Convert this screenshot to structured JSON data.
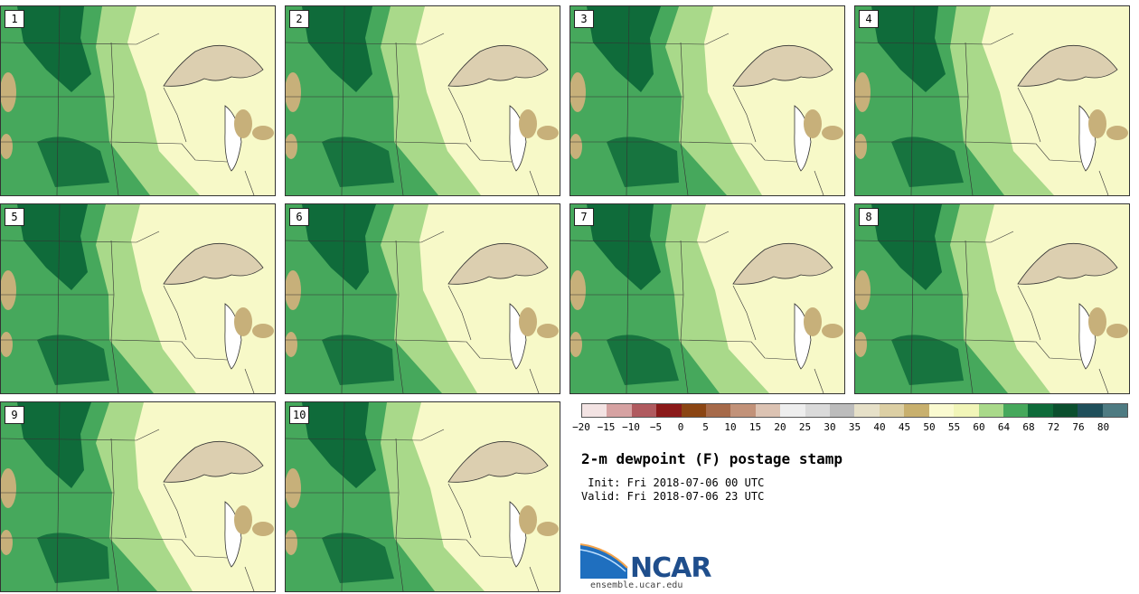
{
  "colors": {
    "land_pale": "#f7f9c8",
    "land_light": "#a9d98a",
    "land_mid": "#46a85c",
    "land_dark": "#0f6b3a",
    "lake": "#dccfb0",
    "dry": "#c7b07a",
    "border": "#333333"
  },
  "members": [
    {
      "label": "1"
    },
    {
      "label": "2"
    },
    {
      "label": "3"
    },
    {
      "label": "4"
    },
    {
      "label": "5"
    },
    {
      "label": "6"
    },
    {
      "label": "7"
    },
    {
      "label": "8"
    },
    {
      "label": "9"
    },
    {
      "label": "10"
    }
  ],
  "colorbar": {
    "swatches": [
      "#f3e3e3",
      "#d6a2a2",
      "#b05a5f",
      "#8b1a1a",
      "#8b4513",
      "#a66a4a",
      "#c29279",
      "#dcc3b3",
      "#eeeeee",
      "#dadada",
      "#bcbcbc",
      "#e6e0c8",
      "#dccfa4",
      "#c8b06e",
      "#fafad0",
      "#f1f5b8",
      "#a9d98a",
      "#46a85c",
      "#0f6b3a",
      "#0b4f2e",
      "#1f4f5a",
      "#4e7b82"
    ],
    "ticks": [
      "−20",
      "−15",
      "−10",
      "−5",
      "0",
      "5",
      "10",
      "15",
      "20",
      "25",
      "30",
      "35",
      "40",
      "45",
      "50",
      "55",
      "60",
      "64",
      "68",
      "72",
      "76",
      "80"
    ]
  },
  "title": "2-m dewpoint (F) postage stamp",
  "init_text": " Init: Fri 2018-07-06 00 UTC",
  "valid_text": "Valid: Fri 2018-07-06 23 UTC",
  "logo": {
    "name": "NCAR",
    "url": "ensemble.ucar.edu"
  }
}
